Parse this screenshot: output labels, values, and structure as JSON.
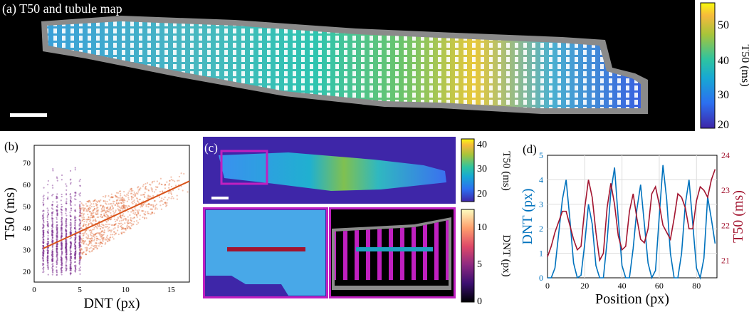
{
  "panel_a": {
    "label": "(a) T50 and tubule map",
    "colorbar": {
      "label": "T50 (ms)",
      "ticks": [
        "50",
        "40",
        "30",
        "20"
      ]
    }
  },
  "panel_b": {
    "label": "(b)",
    "xlabel": "DNT (px)",
    "ylabel": "T50 (ms)",
    "xticks": [
      "0",
      "5",
      "10",
      "15"
    ],
    "yticks": [
      "20",
      "30",
      "40",
      "50",
      "60",
      "70"
    ]
  },
  "panel_c": {
    "label": "(c)",
    "colorbar_top": {
      "label": "T50 (ms)",
      "ticks": [
        "40",
        "30",
        "20"
      ]
    },
    "colorbar_bottom": {
      "label": "DNT (px)",
      "ticks": [
        "10",
        "5",
        "0"
      ]
    }
  },
  "panel_d": {
    "label": "(d)",
    "xlabel": "Position (px)",
    "ylabel_left": "DNT (px)",
    "ylabel_right": "T50 (ms)",
    "xticks": [
      "0",
      "20",
      "40",
      "60",
      "80"
    ],
    "yticks_left": [
      "0",
      "1",
      "2",
      "3",
      "4",
      "5"
    ],
    "yticks_right": [
      "21",
      "22",
      "23",
      "24"
    ]
  },
  "colors": {
    "purple": "#7b2d8e",
    "orange": "#d95319",
    "blue": "#0072bd",
    "red": "#a2142f",
    "magenta": "#c020c0",
    "cell_gray": "#8a8a8a",
    "parula_dark": "#3e26a8"
  },
  "chart_data": [
    {
      "type": "scatter",
      "xlabel": "DNT (px)",
      "ylabel": "T50 (ms)",
      "xlim": [
        0,
        17
      ],
      "ylim": [
        15,
        78
      ],
      "series": [
        {
          "x_range": [
            1,
            5
          ],
          "y_range": [
            18,
            75
          ],
          "color": "#7b2d8e"
        },
        {
          "x_range": [
            5,
            17
          ],
          "y_range": [
            22,
            67
          ],
          "color": "#d95319"
        }
      ],
      "fit_line": {
        "x": [
          1,
          17
        ],
        "y": [
          30.5,
          61.5
        ]
      }
    },
    {
      "type": "line",
      "xlabel": "Position (px)",
      "xlim": [
        0,
        91
      ],
      "series": [
        {
          "name": "DNT (px)",
          "axis": "left",
          "ylim": [
            0,
            5
          ],
          "x": [
            0,
            2,
            4,
            6,
            8,
            10,
            12,
            14,
            16,
            18,
            20,
            22,
            24,
            26,
            28,
            30,
            32,
            34,
            36,
            38,
            40,
            42,
            44,
            46,
            48,
            50,
            52,
            54,
            56,
            58,
            60,
            62,
            64,
            66,
            68,
            70,
            72,
            74,
            76,
            78,
            80,
            82,
            84,
            86,
            88,
            90
          ],
          "y": [
            0,
            0,
            0.4,
            1.8,
            3.2,
            4.0,
            2.4,
            0.6,
            0,
            0.1,
            1.4,
            3.0,
            2.2,
            0.5,
            0,
            0,
            1.5,
            3.5,
            4.5,
            2.4,
            0.5,
            0,
            0,
            1.2,
            2.8,
            3.8,
            2.2,
            0.6,
            0,
            0.3,
            2.5,
            4.6,
            3.2,
            1.0,
            0,
            0,
            1.0,
            3.0,
            4.0,
            2.2,
            0.4,
            0,
            0.8,
            3.3,
            2.4,
            1.4
          ]
        },
        {
          "name": "T50 (ms)",
          "axis": "right",
          "ylim": [
            20.5,
            24
          ],
          "x": [
            0,
            2,
            4,
            6,
            8,
            10,
            12,
            14,
            16,
            18,
            20,
            22,
            24,
            26,
            28,
            30,
            32,
            34,
            36,
            38,
            40,
            42,
            44,
            46,
            48,
            50,
            52,
            54,
            56,
            58,
            60,
            62,
            64,
            66,
            68,
            70,
            72,
            74,
            76,
            78,
            80,
            82,
            84,
            86,
            88,
            90
          ],
          "y": [
            21.1,
            21.4,
            21.8,
            22.1,
            22.4,
            22.4,
            22.0,
            21.6,
            21.3,
            21.4,
            22.5,
            23.3,
            22.8,
            21.8,
            21.0,
            21.2,
            22.5,
            23.2,
            22.6,
            21.7,
            21.3,
            21.4,
            22.4,
            22.9,
            22.2,
            21.6,
            21.5,
            21.9,
            22.9,
            23.1,
            22.6,
            22.0,
            21.8,
            21.6,
            22.2,
            22.9,
            22.8,
            22.5,
            21.9,
            21.9,
            22.7,
            23.1,
            23.0,
            22.8,
            23.3,
            23.6
          ]
        }
      ]
    }
  ]
}
